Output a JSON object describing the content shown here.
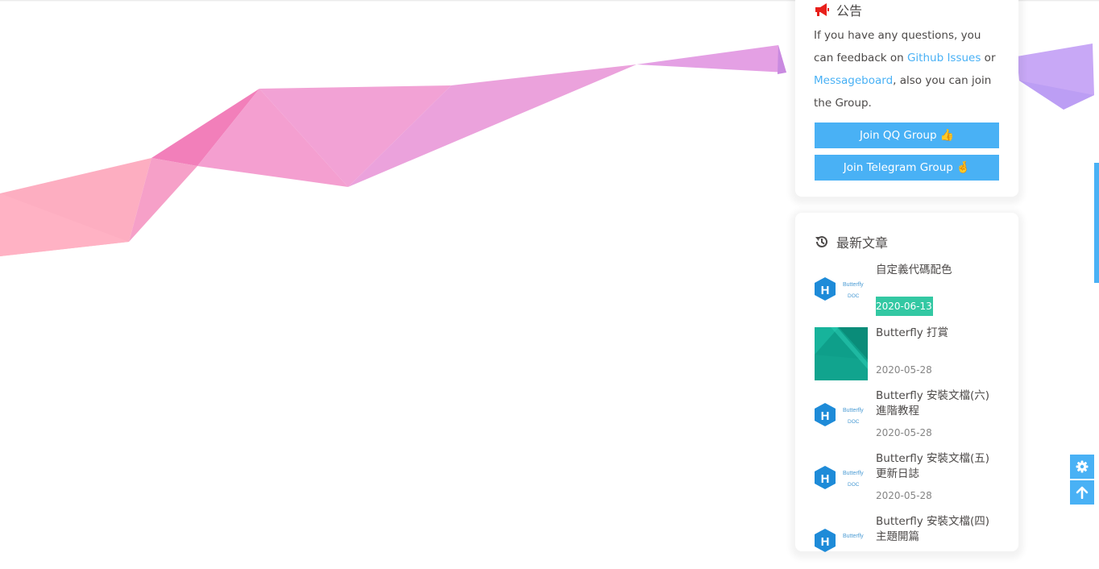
{
  "announcement": {
    "title": "公告",
    "text_1": "If you have any questions, you can feedback on ",
    "link_github": "Github Issues",
    "text_2": " or ",
    "link_messageboard": "Messageboard",
    "text_3": ", also you can join the Group.",
    "join_qq": "Join QQ Group",
    "join_qq_emoji": "👍",
    "join_telegram": "Join Telegram Group",
    "join_telegram_emoji": "🤞",
    "icon": "bullhorn-icon"
  },
  "recent": {
    "title": "最新文章",
    "icon": "history-icon",
    "posts": [
      {
        "title": "自定義代碼配色",
        "date": "2020-06-13",
        "thumb": "butterfly-doc-logo"
      },
      {
        "title": "Butterfly 打賞",
        "date": "2020-05-28",
        "thumb": "green-abstract-image"
      },
      {
        "title": "Butterfly 安裝文檔(六) 進階教程",
        "date": "2020-05-28",
        "thumb": "butterfly-doc-logo"
      },
      {
        "title": "Butterfly 安裝文檔(五) 更新日誌",
        "date": "2020-05-28",
        "thumb": "butterfly-doc-logo"
      },
      {
        "title": "Butterfly 安裝文檔(四) 主題開篇",
        "date": "",
        "thumb": "butterfly-doc-logo"
      }
    ],
    "logo_word": "Butterfly",
    "logo_sub": "DOC"
  },
  "rightside": {
    "settings_icon": "gear-icon",
    "top_icon": "arrow-up-icon"
  },
  "colors": {
    "accent": "#49b1f5",
    "highlight": "#33c8a3",
    "text": "#4c4948"
  }
}
